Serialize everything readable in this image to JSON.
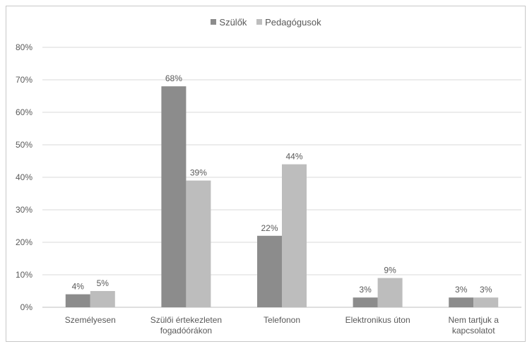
{
  "chart_data": {
    "type": "bar",
    "categories": [
      [
        "Személyesen"
      ],
      [
        "Szülői értekezleten",
        "fogadóórákon"
      ],
      [
        "Telefonon"
      ],
      [
        "Elektronikus úton"
      ],
      [
        "Nem tartjuk a",
        "kapcsolatot"
      ]
    ],
    "series": [
      {
        "name": "Szülők",
        "values": [
          4,
          68,
          22,
          3,
          3
        ],
        "labels": [
          "4%",
          "68%",
          "22%",
          "3%",
          "3%"
        ],
        "color": "#8c8c8c"
      },
      {
        "name": "Pedagógusok",
        "values": [
          5,
          39,
          44,
          9,
          3
        ],
        "labels": [
          "5%",
          "39%",
          "44%",
          "9%",
          "3%"
        ],
        "color": "#bdbdbd"
      }
    ],
    "ylim": [
      0,
      80
    ],
    "yticks": [
      "0%",
      "10%",
      "20%",
      "30%",
      "40%",
      "50%",
      "60%",
      "70%",
      "80%"
    ],
    "grid": true,
    "legend_position": "top",
    "colors": {
      "grid": "#d9d9d9",
      "text": "#595959",
      "axis": "#bfbfbf"
    }
  }
}
